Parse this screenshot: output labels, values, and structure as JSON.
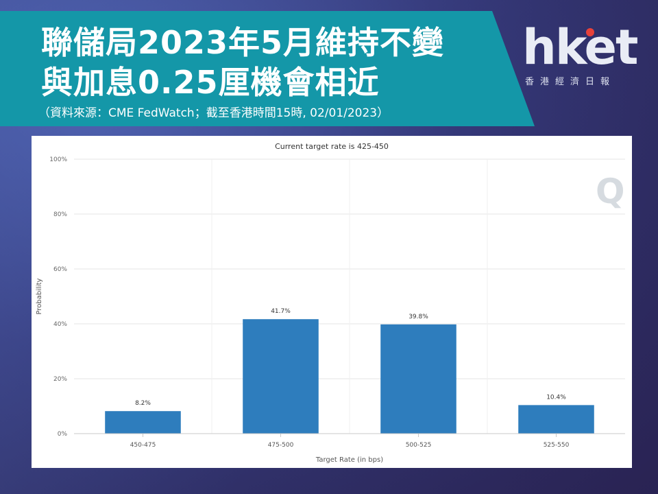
{
  "header": {
    "title_line1": "聯儲局2023年5月維持不變",
    "title_line2": "與加息0.25厘機會相近",
    "subtitle": "（資料來源：CME FedWatch；截至香港時間15時, 02/01/2023）"
  },
  "logo": {
    "text": "hket",
    "subtitle": "香港經濟日報"
  },
  "colors": {
    "banner": "#1497a8",
    "bar": "#2e7dbd",
    "grid": "#e6e6e6"
  },
  "chart_data": {
    "type": "bar",
    "title": "Current target rate is 425-450",
    "xlabel": "Target Rate (in bps)",
    "ylabel": "Probability",
    "categories": [
      "450-475",
      "475-500",
      "500-525",
      "525-550"
    ],
    "values": [
      8.2,
      41.7,
      39.8,
      10.4
    ],
    "data_labels": [
      "8.2%",
      "41.7%",
      "39.8%",
      "10.4%"
    ],
    "ylim": [
      0,
      100
    ],
    "yticks": [
      0,
      20,
      40,
      60,
      80,
      100
    ],
    "ytick_labels": [
      "0%",
      "20%",
      "40%",
      "60%",
      "80%",
      "100%"
    ],
    "grid": true,
    "legend": "none"
  }
}
